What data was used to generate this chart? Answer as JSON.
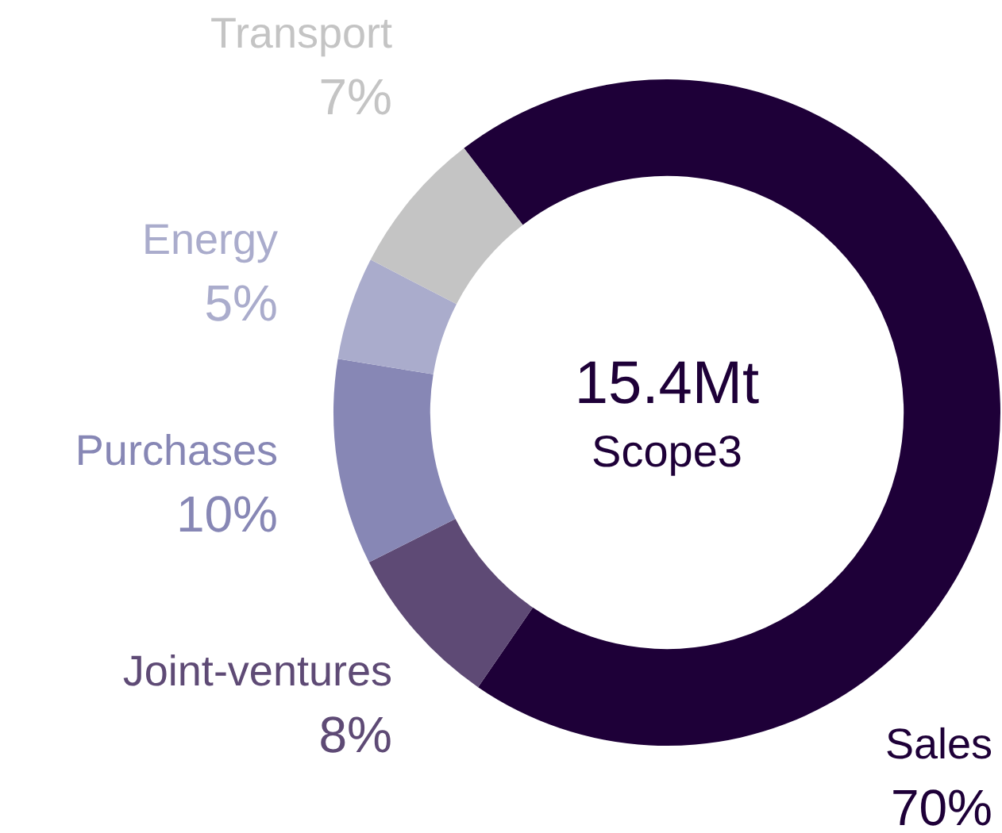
{
  "chart_data": {
    "type": "donut",
    "categories": [
      "Sales",
      "Joint-ventures",
      "Purchases",
      "Energy",
      "Transport"
    ],
    "values": [
      70,
      8,
      10,
      5,
      7
    ],
    "value_labels": [
      "70%",
      "8%",
      "10%",
      "5%",
      "7%"
    ],
    "colors": [
      "#1e0038",
      "#5e4a75",
      "#8787b5",
      "#aaaccc",
      "#c4c4c4"
    ],
    "annotations": [
      "15.4Mt",
      "Scope3"
    ],
    "legend": false
  }
}
